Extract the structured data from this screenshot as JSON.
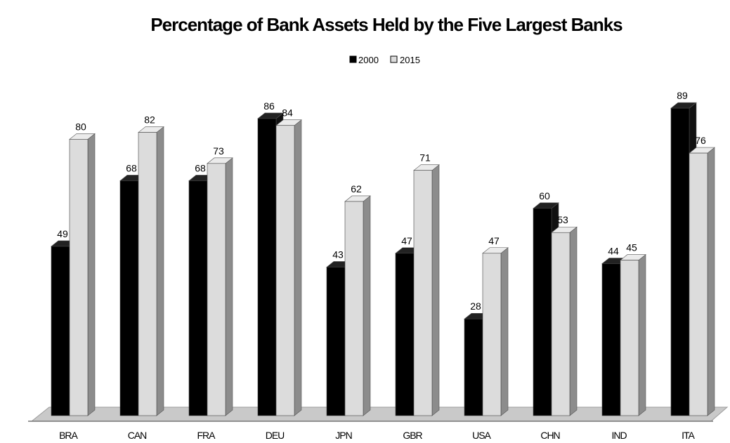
{
  "chart_data": {
    "type": "bar",
    "title": "Percentage of Bank Assets Held by the Five Largest Banks",
    "xlabel": "",
    "ylabel": "",
    "ylim": [
      0,
      100
    ],
    "grid": false,
    "legend_position": "top-center",
    "categories": [
      "BRA",
      "CAN",
      "FRA",
      "DEU",
      "JPN",
      "GBR",
      "USA",
      "CHN",
      "IND",
      "ITA"
    ],
    "series": [
      {
        "name": "2000",
        "color": "#000000",
        "values": [
          49,
          68,
          68,
          86,
          43,
          47,
          28,
          60,
          44,
          89
        ]
      },
      {
        "name": "2015",
        "color": "#dcdcdc",
        "values": [
          80,
          82,
          73,
          84,
          62,
          71,
          47,
          53,
          45,
          76
        ]
      }
    ]
  }
}
